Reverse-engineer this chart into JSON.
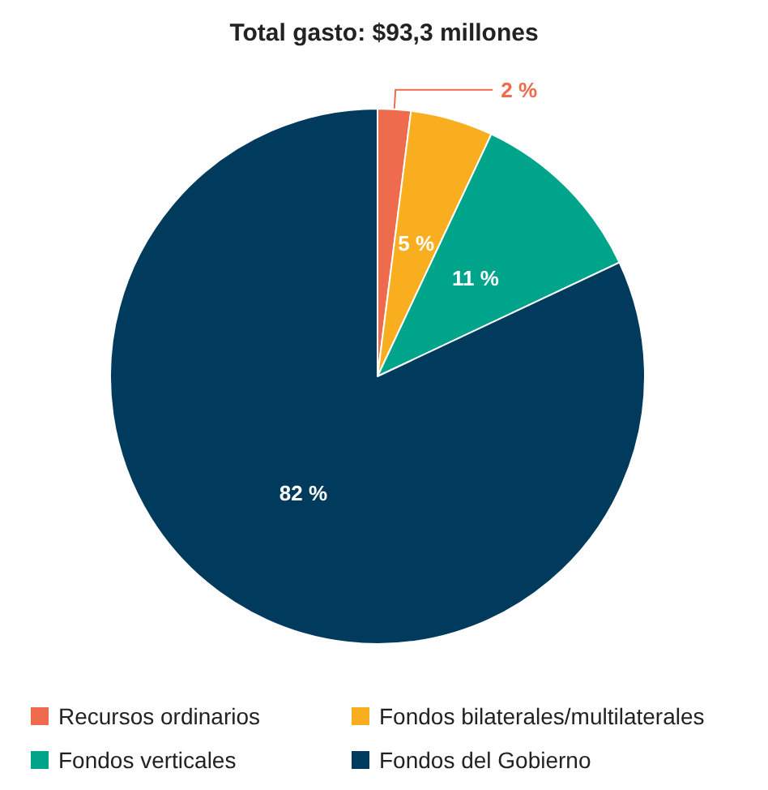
{
  "chart_data": {
    "type": "pie",
    "title": "Total gasto: $93,3 millones",
    "categories": [
      "Recursos ordinarios",
      "Fondos bilaterales/multilaterales",
      "Fondos verticales",
      "Fondos del Gobierno"
    ],
    "values": [
      2,
      5,
      11,
      82
    ],
    "colors": [
      "#ef6b4e",
      "#f9ae1f",
      "#00a48a",
      "#003a5d"
    ],
    "value_labels": [
      "2 %",
      "5 %",
      "11 %",
      "82 %"
    ],
    "legend": "bottom"
  }
}
